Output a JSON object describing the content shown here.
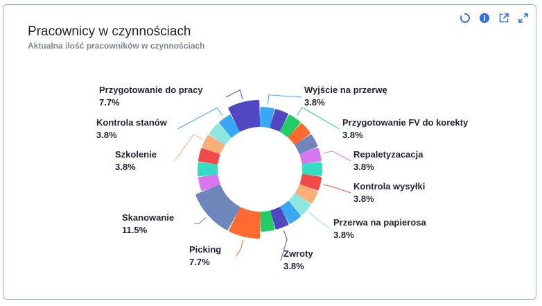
{
  "card": {
    "title": "Pracownicy w czynnościach",
    "subtitle": "Aktualna ilość pracowników w czynnościach"
  },
  "toolbar": {
    "refresh_icon": "refresh-icon",
    "info_icon": "info-icon",
    "open_external_icon": "external-link-icon",
    "expand_icon": "expand-icon"
  },
  "chart_data": {
    "type": "pie",
    "title": "Pracownicy w czynnościach",
    "subtitle": "Aktualna ilość pracowników w czynnościach",
    "slices": [
      {
        "label": "Wyjście na przerwę",
        "value": 3.8,
        "percent_label": "3.8%",
        "color": "#39a8f2",
        "labeled": true
      },
      {
        "label": "",
        "value": 3.8,
        "percent_label": "",
        "color": "#5147c2",
        "labeled": false
      },
      {
        "label": "Przygotowanie FV do korekty",
        "value": 3.8,
        "percent_label": "3.8%",
        "color": "#22cc66",
        "labeled": true
      },
      {
        "label": "",
        "value": 3.8,
        "percent_label": "",
        "color": "#ff6a30",
        "labeled": false
      },
      {
        "label": "",
        "value": 3.8,
        "percent_label": "",
        "color": "#6f86bb",
        "labeled": false
      },
      {
        "label": "Repaletyzacacja",
        "value": 3.8,
        "percent_label": "3.8%",
        "color": "#d876ee",
        "labeled": true
      },
      {
        "label": "",
        "value": 3.8,
        "percent_label": "",
        "color": "#34dcc2",
        "labeled": false
      },
      {
        "label": "Kontrola wysyłki",
        "value": 3.8,
        "percent_label": "3.8%",
        "color": "#f24a4a",
        "labeled": true
      },
      {
        "label": "",
        "value": 3.8,
        "percent_label": "",
        "color": "#f9ae78",
        "labeled": false
      },
      {
        "label": "Przerwa na papierosa",
        "value": 3.8,
        "percent_label": "3.8%",
        "color": "#8ee6e1",
        "labeled": true
      },
      {
        "label": "",
        "value": 3.8,
        "percent_label": "",
        "color": "#39a8f2",
        "labeled": false
      },
      {
        "label": "Zwroty",
        "value": 3.8,
        "percent_label": "3.8%",
        "color": "#5147c2",
        "labeled": true
      },
      {
        "label": "",
        "value": 3.8,
        "percent_label": "",
        "color": "#22cc66",
        "labeled": false
      },
      {
        "label": "Picking",
        "value": 7.7,
        "percent_label": "7.7%",
        "color": "#ff6a30",
        "labeled": true
      },
      {
        "label": "Skanowanie",
        "value": 11.5,
        "percent_label": "11.5%",
        "color": "#6f86bb",
        "labeled": true
      },
      {
        "label": "",
        "value": 3.8,
        "percent_label": "",
        "color": "#d876ee",
        "labeled": false
      },
      {
        "label": "",
        "value": 3.8,
        "percent_label": "",
        "color": "#34dcc2",
        "labeled": false
      },
      {
        "label": "",
        "value": 3.8,
        "percent_label": "",
        "color": "#f24a4a",
        "labeled": false
      },
      {
        "label": "Szkolenie",
        "value": 3.8,
        "percent_label": "3.8%",
        "color": "#f9ae78",
        "labeled": true
      },
      {
        "label": "",
        "value": 3.8,
        "percent_label": "",
        "color": "#8ee6e1",
        "labeled": false
      },
      {
        "label": "Kontrola stanów",
        "value": 3.8,
        "percent_label": "3.8%",
        "color": "#39a8f2",
        "labeled": true
      },
      {
        "label": "Przygotowanie do pracy",
        "value": 7.7,
        "percent_label": "7.7%",
        "color": "#5147c2",
        "labeled": true
      }
    ],
    "legend": "none",
    "inner_hole": true
  }
}
